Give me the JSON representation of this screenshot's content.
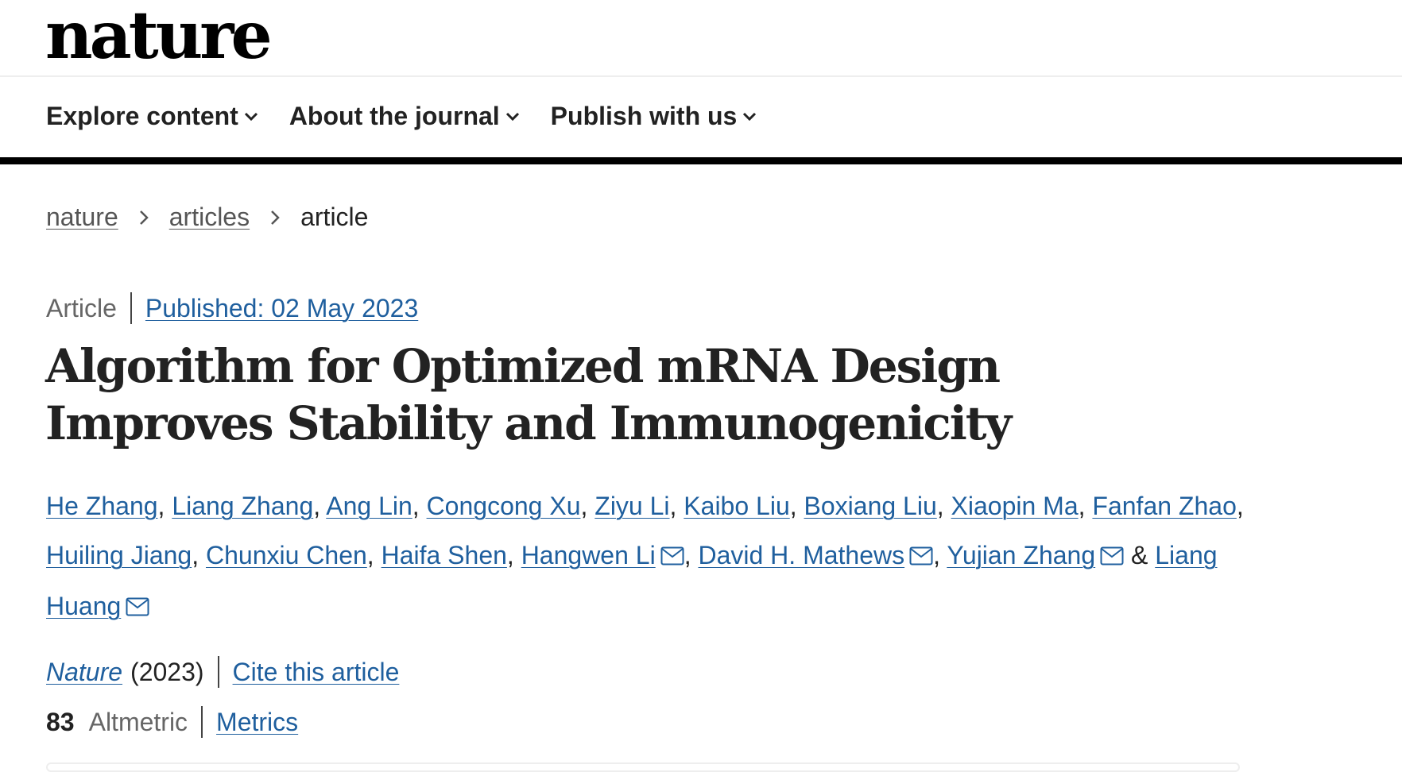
{
  "site": {
    "logo": "nature"
  },
  "nav": {
    "items": [
      {
        "label": "Explore content"
      },
      {
        "label": "About the journal"
      },
      {
        "label": "Publish with us"
      }
    ]
  },
  "breadcrumb": {
    "items": [
      "nature",
      "articles"
    ],
    "current": "article"
  },
  "article": {
    "type": "Article",
    "published": "Published: 02 May 2023",
    "title": "Algorithm for Optimized mRNA Design Improves Stability and Immunogenicity",
    "authors": [
      {
        "name": "He Zhang",
        "email": false
      },
      {
        "name": "Liang Zhang",
        "email": false
      },
      {
        "name": "Ang Lin",
        "email": false
      },
      {
        "name": "Congcong Xu",
        "email": false
      },
      {
        "name": "Ziyu Li",
        "email": false
      },
      {
        "name": "Kaibo Liu",
        "email": false
      },
      {
        "name": "Boxiang Liu",
        "email": false
      },
      {
        "name": "Xiaopin Ma",
        "email": false
      },
      {
        "name": "Fanfan Zhao",
        "email": false
      },
      {
        "name": "Huiling Jiang",
        "email": false
      },
      {
        "name": "Chunxiu Chen",
        "email": false
      },
      {
        "name": "Haifa Shen",
        "email": false
      },
      {
        "name": "Hangwen Li",
        "email": true
      },
      {
        "name": "David H. Mathews",
        "email": true
      },
      {
        "name": "Yujian Zhang",
        "email": true
      },
      {
        "name": "Liang Huang",
        "email": true
      }
    ],
    "journal": "Nature",
    "year": "(2023)",
    "cite_label": "Cite this article",
    "altmetric_count": "83",
    "altmetric_label": "Altmetric",
    "metrics_label": "Metrics"
  },
  "colors": {
    "link": "#1f5f9e",
    "text": "#222222",
    "muted": "#666666",
    "nav_rule": "#000000"
  },
  "icons": {
    "chevron": "chevron-down-icon",
    "separator": "chevron-right-icon",
    "email": "envelope-icon"
  }
}
